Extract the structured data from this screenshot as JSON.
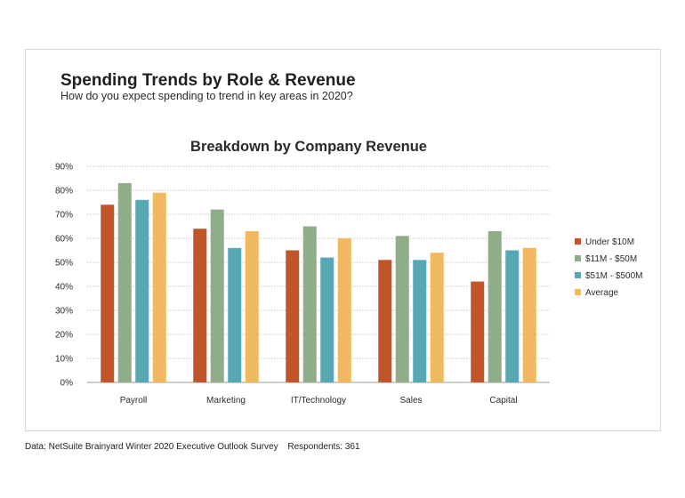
{
  "header": {
    "title": "Spending Trends by Role & Revenue",
    "subtitle": "How do you expect spending to trend in key areas in 2020?"
  },
  "footer": {
    "source": "Data: NetSuite Brainyard Winter 2020 Executive Outlook Survey",
    "respondents": "Respondents: 361"
  },
  "chart_data": {
    "type": "bar",
    "title": "Breakdown by Company Revenue",
    "xlabel": "",
    "ylabel": "",
    "ylim": [
      0,
      90
    ],
    "yticks": [
      0,
      10,
      20,
      30,
      40,
      50,
      60,
      70,
      80,
      90
    ],
    "ytick_suffix": "%",
    "grid": true,
    "legend_position": "right",
    "categories": [
      "Payroll",
      "Marketing",
      "IT/Technology",
      "Sales",
      "Capital"
    ],
    "series": [
      {
        "name": "Under $10M",
        "color": "#C0572B",
        "values": [
          74,
          64,
          55,
          51,
          42
        ]
      },
      {
        "name": "$11M - $50M",
        "color": "#8FAE88",
        "values": [
          83,
          72,
          65,
          61,
          63
        ]
      },
      {
        "name": "$51M - $500M",
        "color": "#57A8B4",
        "values": [
          76,
          56,
          52,
          51,
          55
        ]
      },
      {
        "name": "Average",
        "color": "#F0B860",
        "values": [
          79,
          63,
          60,
          54,
          56
        ]
      }
    ]
  }
}
